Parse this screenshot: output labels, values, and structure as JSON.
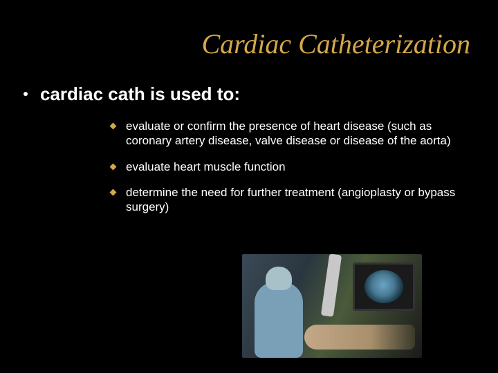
{
  "title": "Cardiac Catheterization",
  "mainBullet": "cardiac cath is used to:",
  "subBullets": [
    "evaluate or confirm the presence of heart disease (such as coronary artery disease, valve disease or disease of the aorta)",
    "evaluate heart muscle function",
    "determine the need for further treatment (angioplasty or bypass surgery)"
  ],
  "colors": {
    "background": "#000000",
    "titleColor": "#d4a84a",
    "textColor": "#ffffff",
    "subBulletMarker": "#d4a84a"
  },
  "typography": {
    "titleFont": "Times New Roman",
    "titleStyle": "italic",
    "titleSize": 40,
    "bodyFont": "Arial",
    "mainBulletSize": 26,
    "subBulletSize": 17
  },
  "image": {
    "description": "cath-lab-procedure-photo",
    "position": "bottom-right"
  }
}
